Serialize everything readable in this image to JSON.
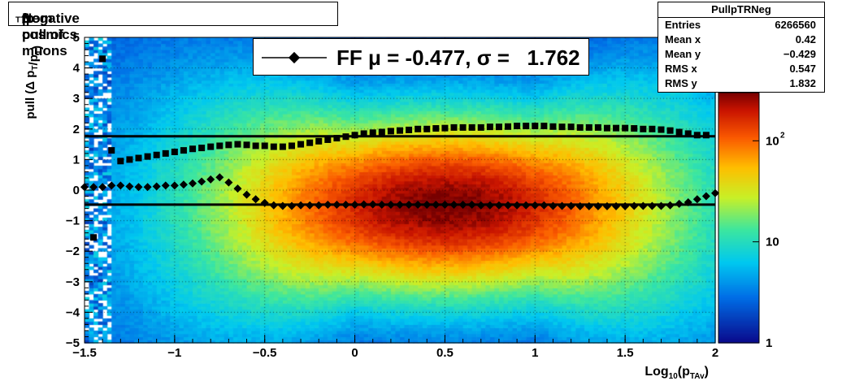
{
  "title": "Negative pull of Δ p_T/p_T from cosmics muons",
  "title_parts": {
    "pre": "Negative pull of ",
    "delta": "Δ",
    "p1": " p",
    "sub1": "T",
    "slash": "/p",
    "sub2": "T",
    "post": " from cosmics muons"
  },
  "stats": {
    "name": "PullpTRNeg",
    "rows": [
      {
        "key": "Entries",
        "value": "6266560"
      },
      {
        "key": "Mean x",
        "value": "0.42"
      },
      {
        "key": "Mean y",
        "value": "−0.429"
      },
      {
        "key": "RMS x",
        "value": "0.547"
      },
      {
        "key": "RMS y",
        "value": "1.832"
      }
    ]
  },
  "legend": {
    "label": "FF μ = -0.477, σ =   1.762",
    "mu": -0.477,
    "sigma": 1.762
  },
  "chart_data": {
    "type": "heatmap",
    "xlabel": "Log10(pTAv)",
    "xlabel_parts": {
      "pre": "Log",
      "sub": "10",
      "mid": "(p",
      "sub2": "TAv",
      "post": ")"
    },
    "ylabel": "pull (Δ p_T/p_T)",
    "xlim": [
      -1.5,
      2
    ],
    "ylim": [
      -5,
      5
    ],
    "x_ticks": [
      "−1.5",
      "−1",
      "−0.5",
      "0",
      "0.5",
      "1",
      "1.5",
      "2"
    ],
    "x_tick_values": [
      -1.5,
      -1,
      -0.5,
      0,
      0.5,
      1,
      1.5,
      2
    ],
    "y_ticks": [
      "−5",
      "−4",
      "−3",
      "−2",
      "−1",
      "0",
      "1",
      "2",
      "3",
      "4",
      "5"
    ],
    "y_tick_values": [
      -5,
      -4,
      -3,
      -2,
      -1,
      0,
      1,
      2,
      3,
      4,
      5
    ],
    "colorbar": {
      "scale": "log",
      "labels": [
        "1",
        "10",
        "10^2"
      ],
      "label_values": [
        1,
        10,
        100
      ]
    },
    "grid": true,
    "density_peak": {
      "x": 0.5,
      "y": -0.5
    },
    "sigma_series": {
      "name": "sigma",
      "x": [
        -1.45,
        -1.4,
        -1.35,
        -1.3,
        -1.25,
        -1.2,
        -1.15,
        -1.1,
        -1.05,
        -1.0,
        -0.95,
        -0.9,
        -0.85,
        -0.8,
        -0.75,
        -0.7,
        -0.65,
        -0.6,
        -0.55,
        -0.5,
        -0.45,
        -0.4,
        -0.35,
        -0.3,
        -0.25,
        -0.2,
        -0.15,
        -0.1,
        -0.05,
        0.0,
        0.05,
        0.1,
        0.15,
        0.2,
        0.25,
        0.3,
        0.35,
        0.4,
        0.45,
        0.5,
        0.55,
        0.6,
        0.65,
        0.7,
        0.75,
        0.8,
        0.85,
        0.9,
        0.95,
        1.0,
        1.05,
        1.1,
        1.15,
        1.2,
        1.25,
        1.3,
        1.35,
        1.4,
        1.45,
        1.5,
        1.55,
        1.6,
        1.65,
        1.7,
        1.75,
        1.8,
        1.85,
        1.9,
        1.95
      ],
      "y": [
        -1.55,
        4.3,
        1.3,
        0.95,
        1.0,
        1.05,
        1.1,
        1.15,
        1.2,
        1.25,
        1.3,
        1.35,
        1.38,
        1.42,
        1.45,
        1.48,
        1.5,
        1.48,
        1.45,
        1.45,
        1.42,
        1.42,
        1.45,
        1.5,
        1.55,
        1.6,
        1.65,
        1.7,
        1.75,
        1.8,
        1.85,
        1.88,
        1.9,
        1.93,
        1.95,
        1.97,
        2.0,
        2.0,
        2.02,
        2.03,
        2.05,
        2.05,
        2.05,
        2.05,
        2.07,
        2.07,
        2.08,
        2.1,
        2.1,
        2.1,
        2.1,
        2.08,
        2.07,
        2.07,
        2.05,
        2.05,
        2.05,
        2.03,
        2.03,
        2.03,
        2.02,
        2.0,
        2.0,
        1.98,
        1.95,
        1.9,
        1.85,
        1.8,
        1.8
      ]
    },
    "mean_series": {
      "name": "mu",
      "x": [
        -1.5,
        -1.45,
        -1.4,
        -1.35,
        -1.3,
        -1.25,
        -1.2,
        -1.15,
        -1.1,
        -1.05,
        -1.0,
        -0.95,
        -0.9,
        -0.85,
        -0.8,
        -0.75,
        -0.7,
        -0.65,
        -0.6,
        -0.55,
        -0.5,
        -0.45,
        -0.4,
        -0.35,
        -0.3,
        -0.25,
        -0.2,
        -0.15,
        -0.1,
        -0.05,
        0.0,
        0.05,
        0.1,
        0.15,
        0.2,
        0.25,
        0.3,
        0.35,
        0.4,
        0.45,
        0.5,
        0.55,
        0.6,
        0.65,
        0.7,
        0.75,
        0.8,
        0.85,
        0.9,
        0.95,
        1.0,
        1.05,
        1.1,
        1.15,
        1.2,
        1.25,
        1.3,
        1.35,
        1.4,
        1.45,
        1.5,
        1.55,
        1.6,
        1.65,
        1.7,
        1.75,
        1.8,
        1.85,
        1.9,
        1.95,
        2.0
      ],
      "y": [
        0.1,
        0.1,
        0.1,
        0.15,
        0.15,
        0.12,
        0.1,
        0.1,
        0.12,
        0.15,
        0.15,
        0.18,
        0.22,
        0.28,
        0.35,
        0.42,
        0.25,
        0.05,
        -0.15,
        -0.3,
        -0.42,
        -0.5,
        -0.52,
        -0.52,
        -0.5,
        -0.5,
        -0.5,
        -0.48,
        -0.48,
        -0.48,
        -0.48,
        -0.47,
        -0.47,
        -0.48,
        -0.48,
        -0.48,
        -0.48,
        -0.48,
        -0.48,
        -0.48,
        -0.48,
        -0.48,
        -0.48,
        -0.48,
        -0.5,
        -0.5,
        -0.5,
        -0.5,
        -0.5,
        -0.5,
        -0.5,
        -0.5,
        -0.52,
        -0.52,
        -0.52,
        -0.53,
        -0.53,
        -0.53,
        -0.53,
        -0.53,
        -0.53,
        -0.52,
        -0.52,
        -0.52,
        -0.52,
        -0.5,
        -0.45,
        -0.4,
        -0.3,
        -0.2,
        -0.1,
        0.05
      ]
    },
    "sigma_fit": 1.762,
    "mean_fit": -0.477
  }
}
